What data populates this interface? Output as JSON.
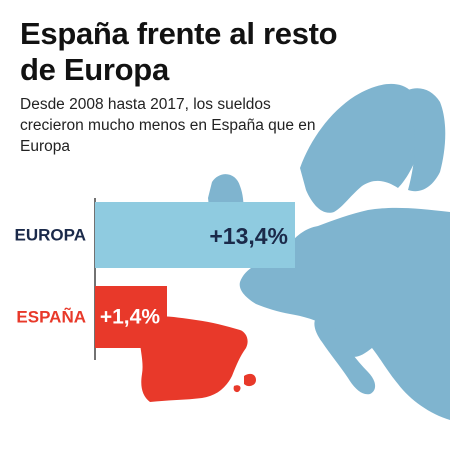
{
  "title": "España frente al resto de Europa",
  "subtitle": "Desde 2008 hasta 2017, los sueldos crecieron mucho menos en España que en Europa",
  "colors": {
    "europe": "#8fcbe0",
    "europe_map": "#7fb4cf",
    "spain": "#e8392a",
    "europe_text": "#1b2a4a",
    "spain_text": "#e8392a",
    "value_europe_text": "#1b2a4a",
    "value_spain_text": "#ffffff",
    "background": "#ffffff"
  },
  "chart_data": {
    "type": "bar",
    "orientation": "horizontal",
    "categories": [
      "EUROPA",
      "ESPAÑA"
    ],
    "values": [
      13.4,
      1.4
    ],
    "value_labels": [
      "+13,4%",
      "+1,4%"
    ]
  }
}
